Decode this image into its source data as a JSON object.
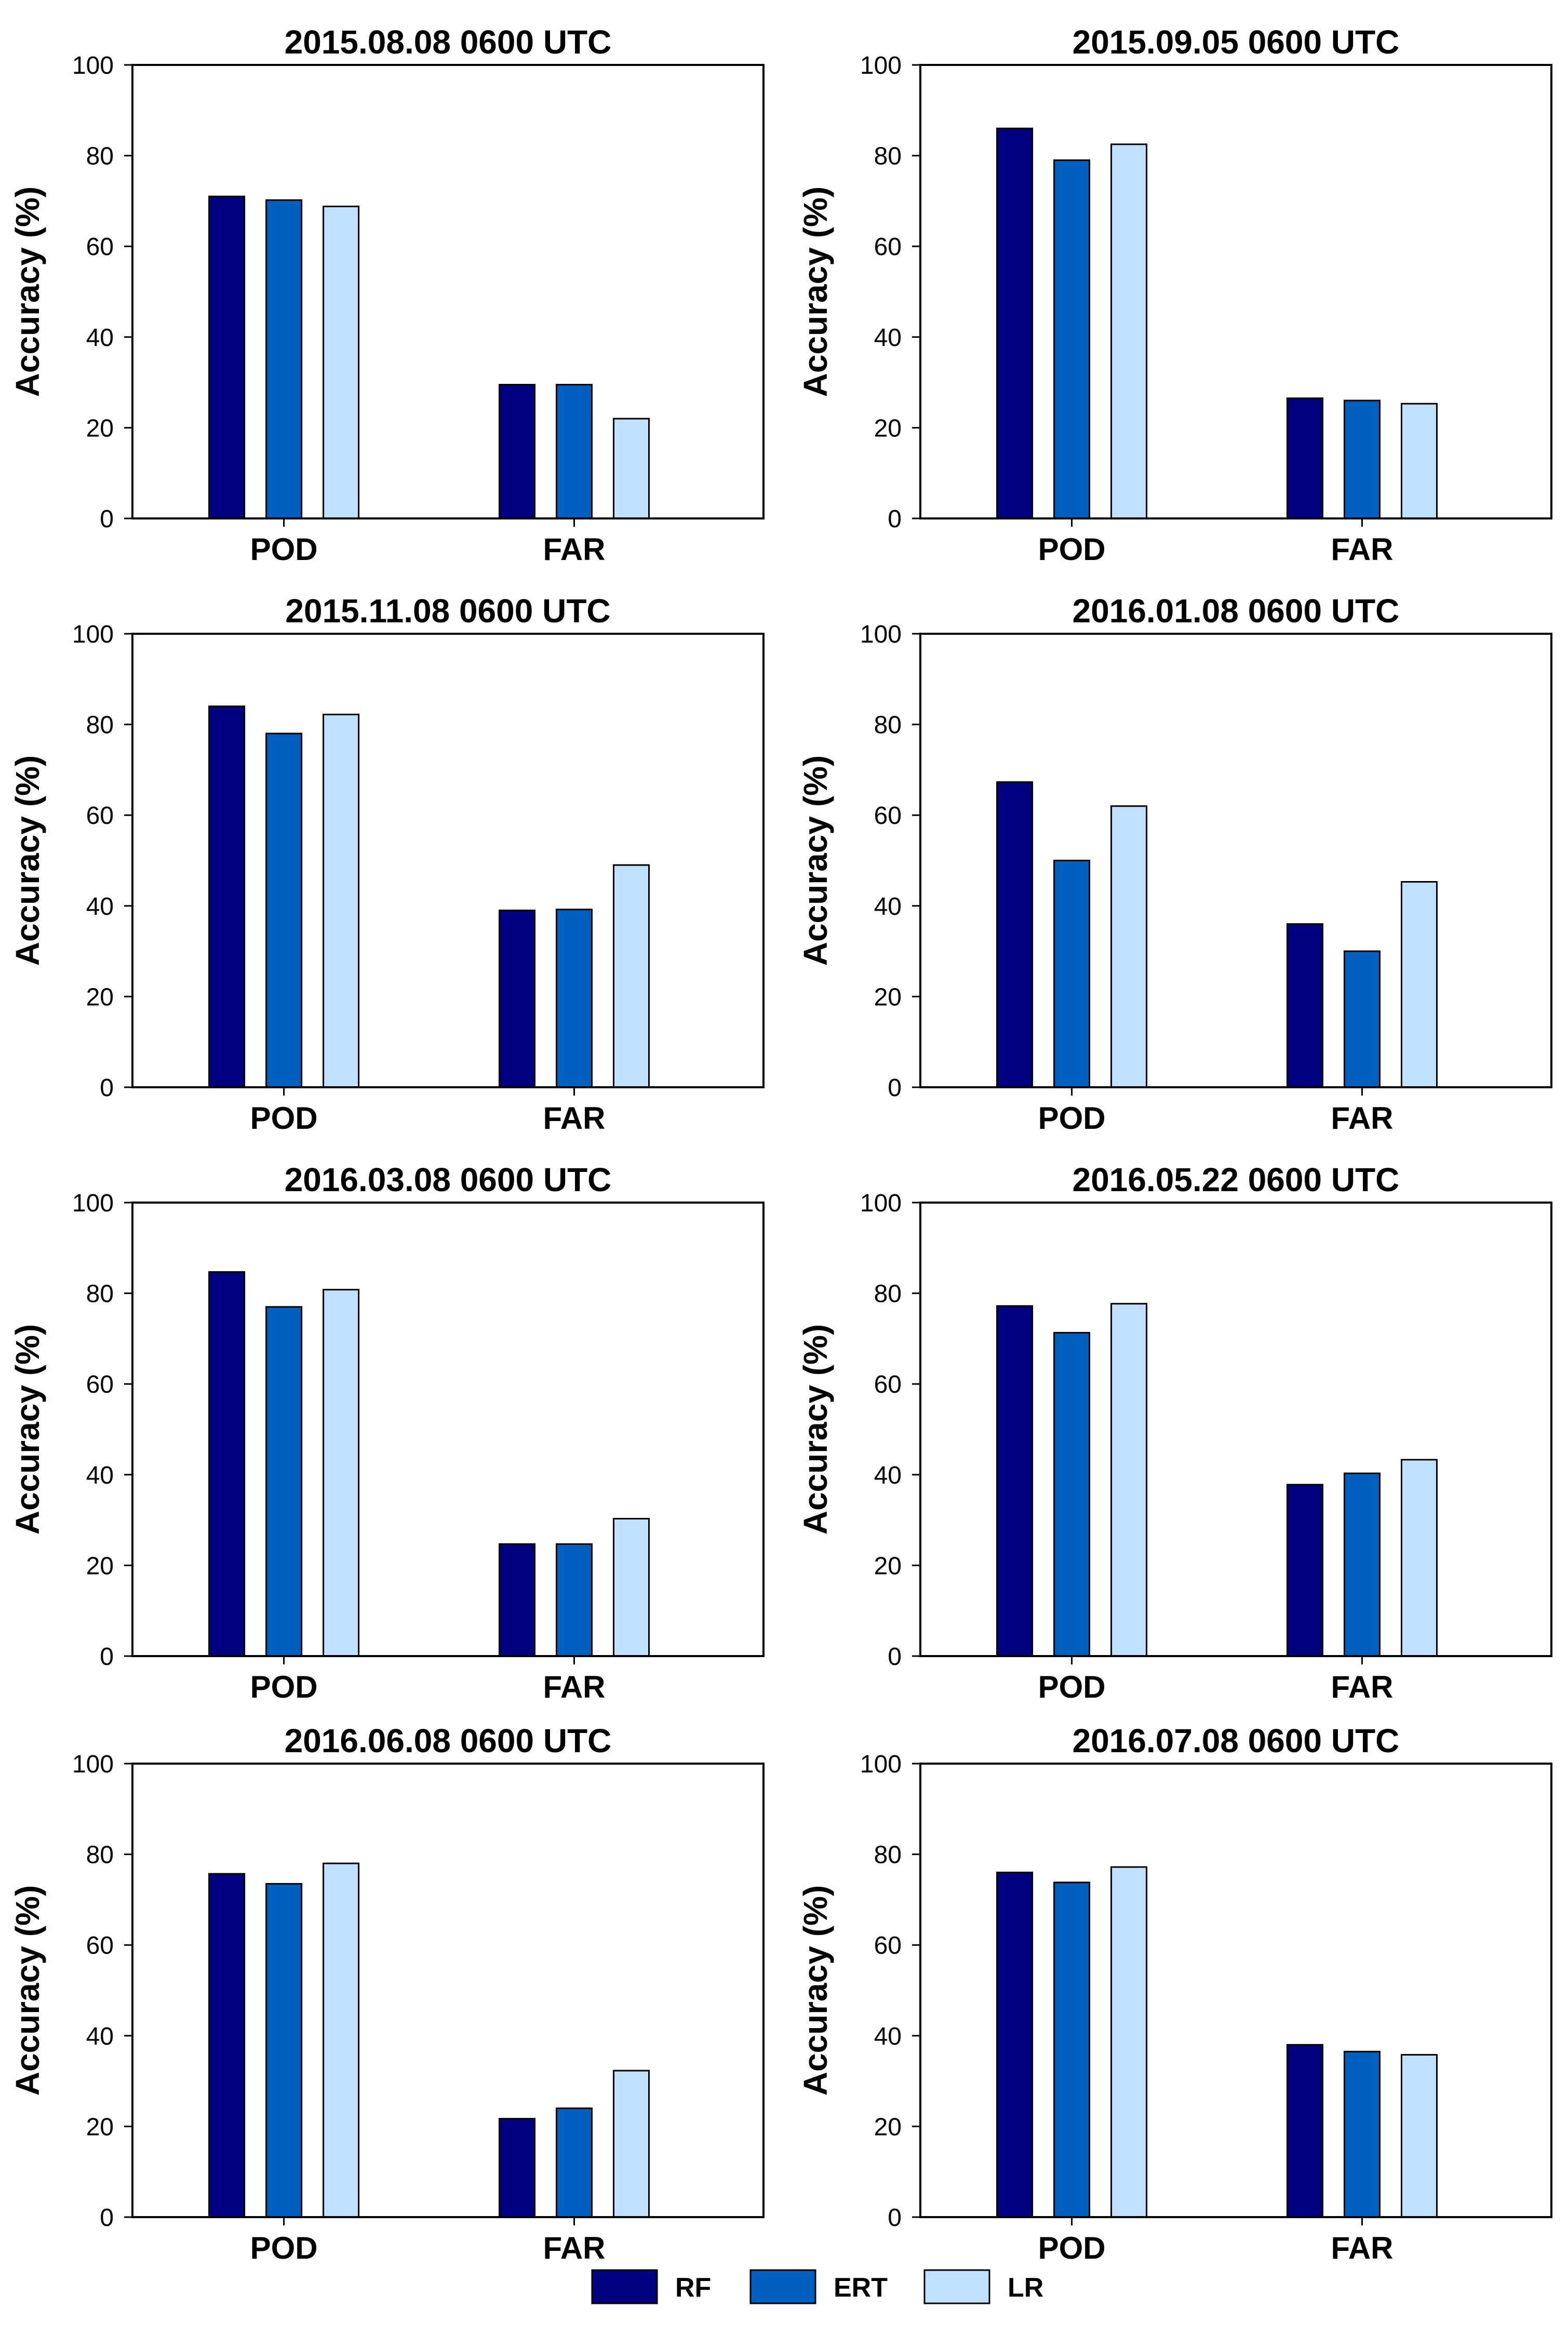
{
  "chart_data": [
    {
      "type": "bar",
      "title": "2015.08.08 0600 UTC",
      "xlabel": "",
      "ylabel": "Accuracy (%)",
      "ylim": [
        0,
        100
      ],
      "yticks": [
        "0",
        "20",
        "40",
        "60",
        "80",
        "100"
      ],
      "categories": [
        "POD",
        "FAR"
      ],
      "series": [
        {
          "name": "RF",
          "values": [
            71,
            29.5
          ]
        },
        {
          "name": "ERT",
          "values": [
            70.2,
            29.5
          ]
        },
        {
          "name": "LR",
          "values": [
            68.8,
            22
          ]
        }
      ]
    },
    {
      "type": "bar",
      "title": "2015.09.05 0600 UTC",
      "xlabel": "",
      "ylabel": "Accuracy (%)",
      "ylim": [
        0,
        100
      ],
      "yticks": [
        "0",
        "20",
        "40",
        "60",
        "80",
        "100"
      ],
      "categories": [
        "POD",
        "FAR"
      ],
      "series": [
        {
          "name": "RF",
          "values": [
            86,
            26.5
          ]
        },
        {
          "name": "ERT",
          "values": [
            79,
            26
          ]
        },
        {
          "name": "LR",
          "values": [
            82.5,
            25.3
          ]
        }
      ]
    },
    {
      "type": "bar",
      "title": "2015.11.08 0600 UTC",
      "xlabel": "",
      "ylabel": "Accuracy (%)",
      "ylim": [
        0,
        100
      ],
      "yticks": [
        "0",
        "20",
        "40",
        "60",
        "80",
        "100"
      ],
      "categories": [
        "POD",
        "FAR"
      ],
      "series": [
        {
          "name": "RF",
          "values": [
            84,
            39
          ]
        },
        {
          "name": "ERT",
          "values": [
            78,
            39.2
          ]
        },
        {
          "name": "LR",
          "values": [
            82.2,
            49
          ]
        }
      ]
    },
    {
      "type": "bar",
      "title": "2016.01.08 0600 UTC",
      "xlabel": "",
      "ylabel": "Accuracy (%)",
      "ylim": [
        0,
        100
      ],
      "yticks": [
        "0",
        "20",
        "40",
        "60",
        "80",
        "100"
      ],
      "categories": [
        "POD",
        "FAR"
      ],
      "series": [
        {
          "name": "RF",
          "values": [
            67.3,
            36
          ]
        },
        {
          "name": "ERT",
          "values": [
            50,
            30
          ]
        },
        {
          "name": "LR",
          "values": [
            62,
            45.3
          ]
        }
      ]
    },
    {
      "type": "bar",
      "title": "2016.03.08 0600 UTC",
      "xlabel": "",
      "ylabel": "Accuracy (%)",
      "ylim": [
        0,
        100
      ],
      "yticks": [
        "0",
        "20",
        "40",
        "60",
        "80",
        "100"
      ],
      "categories": [
        "POD",
        "FAR"
      ],
      "series": [
        {
          "name": "RF",
          "values": [
            84.7,
            24.7
          ]
        },
        {
          "name": "ERT",
          "values": [
            77,
            24.7
          ]
        },
        {
          "name": "LR",
          "values": [
            80.8,
            30.3
          ]
        }
      ]
    },
    {
      "type": "bar",
      "title": "2016.05.22 0600 UTC",
      "xlabel": "",
      "ylabel": "Accuracy (%)",
      "ylim": [
        0,
        100
      ],
      "yticks": [
        "0",
        "20",
        "40",
        "60",
        "80",
        "100"
      ],
      "categories": [
        "POD",
        "FAR"
      ],
      "series": [
        {
          "name": "RF",
          "values": [
            77.2,
            37.8
          ]
        },
        {
          "name": "ERT",
          "values": [
            71.3,
            40.3
          ]
        },
        {
          "name": "LR",
          "values": [
            77.7,
            43.3
          ]
        }
      ]
    },
    {
      "type": "bar",
      "title": "2016.06.08 0600 UTC",
      "xlabel": "",
      "ylabel": "Accuracy (%)",
      "ylim": [
        0,
        100
      ],
      "yticks": [
        "0",
        "20",
        "40",
        "60",
        "80",
        "100"
      ],
      "categories": [
        "POD",
        "FAR"
      ],
      "series": [
        {
          "name": "RF",
          "values": [
            75.7,
            21.7
          ]
        },
        {
          "name": "ERT",
          "values": [
            73.5,
            24
          ]
        },
        {
          "name": "LR",
          "values": [
            78,
            32.3
          ]
        }
      ]
    },
    {
      "type": "bar",
      "title": "2016.07.08 0600 UTC",
      "xlabel": "",
      "ylabel": "Accuracy (%)",
      "ylim": [
        0,
        100
      ],
      "yticks": [
        "0",
        "20",
        "40",
        "60",
        "80",
        "100"
      ],
      "categories": [
        "POD",
        "FAR"
      ],
      "series": [
        {
          "name": "RF",
          "values": [
            76,
            38
          ]
        },
        {
          "name": "ERT",
          "values": [
            73.8,
            36.5
          ]
        },
        {
          "name": "LR",
          "values": [
            77.2,
            35.8
          ]
        }
      ]
    }
  ],
  "legend": {
    "position": "bottom-center",
    "items": [
      {
        "label": "RF",
        "color": "#000080"
      },
      {
        "label": "ERT",
        "color": "#0060C0"
      },
      {
        "label": "LR",
        "color": "#C0E0FF"
      }
    ]
  }
}
